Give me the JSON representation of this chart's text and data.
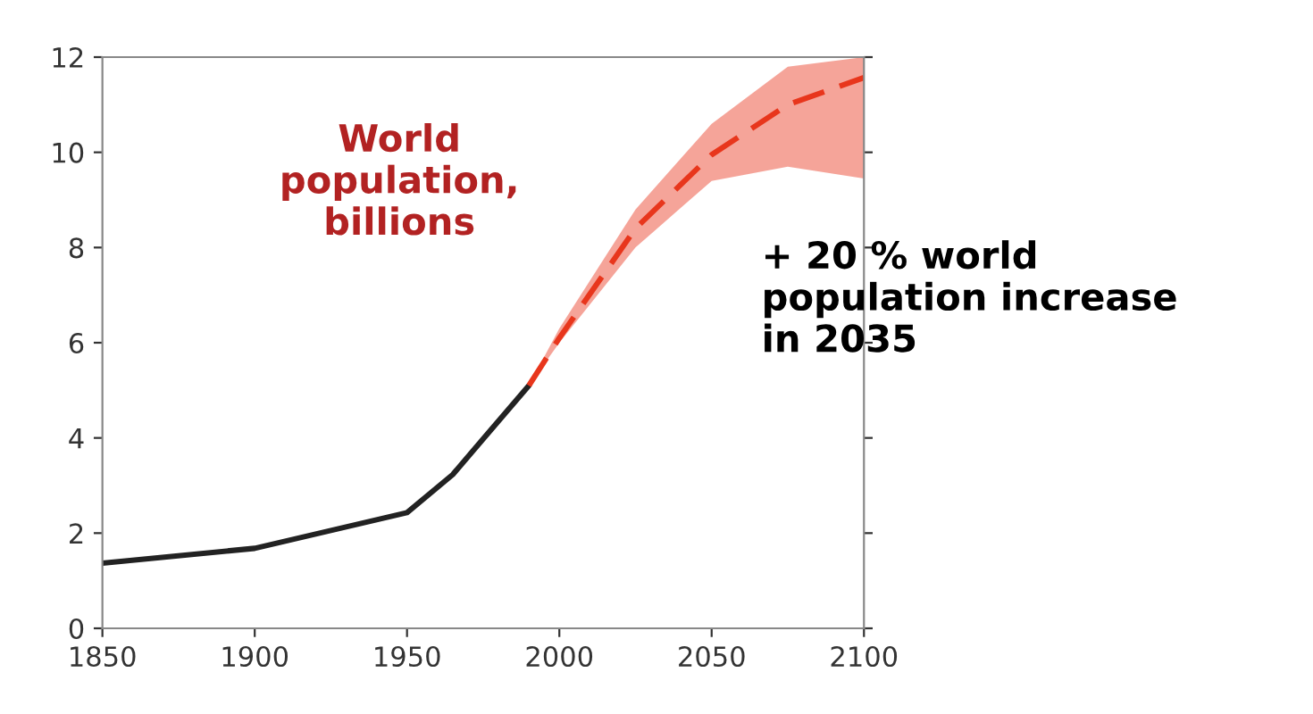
{
  "chart_data": {
    "type": "line",
    "xlim": [
      1850,
      2100
    ],
    "xticks": [
      1850,
      1900,
      1950,
      2000,
      2050,
      2100
    ],
    "ylim": [
      0,
      12
    ],
    "yticks": [
      0,
      2,
      4,
      6,
      8,
      10,
      12
    ],
    "grid": false,
    "legend": false,
    "marker": "none",
    "series": [
      {
        "color": "#222222",
        "line_style": "solid",
        "x": [
          1850,
          1900,
          1950,
          1965,
          1975,
          1990
        ],
        "values": [
          1.37,
          1.68,
          2.43,
          3.23,
          3.98,
          5.1
        ]
      },
      {
        "color": "#e8361c",
        "line_style": "dashed",
        "x": [
          1990,
          2000,
          2025,
          2050,
          2075,
          2100
        ],
        "values": [
          5.1,
          6.1,
          8.4,
          9.95,
          11.0,
          11.57
        ],
        "lower": [
          5.1,
          6.0,
          8.0,
          9.4,
          9.7,
          9.45
        ],
        "upper": [
          5.1,
          6.3,
          8.8,
          10.6,
          11.8,
          12.0
        ]
      }
    ],
    "annotations": [
      "World\npopulation,\nbillions",
      "+ 20 % world\npopulation increase\nin 2035"
    ]
  }
}
